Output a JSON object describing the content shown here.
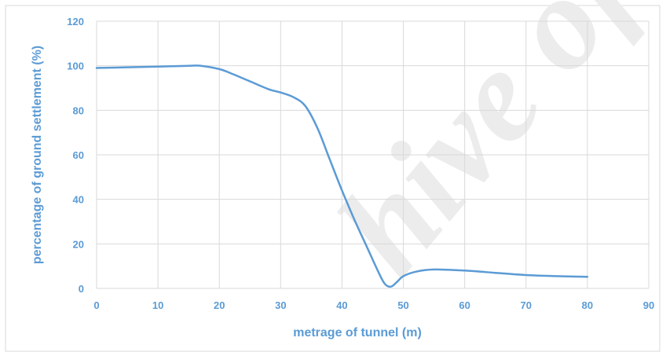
{
  "watermark": {
    "text": "hive of S"
  },
  "chart_data": {
    "type": "line",
    "title": "",
    "xlabel": "metrage of tunnel (m)",
    "ylabel": "percentage of ground settlement (%)",
    "xlim": [
      0,
      90
    ],
    "ylim": [
      0,
      120
    ],
    "x_ticks": [
      0,
      10,
      20,
      30,
      40,
      50,
      60,
      70,
      80,
      90
    ],
    "y_ticks": [
      0,
      20,
      40,
      60,
      80,
      100,
      120
    ],
    "x_tick_labels": [
      "0",
      "10",
      "20",
      "30",
      "40",
      "50",
      "60",
      "70",
      "80",
      "90"
    ],
    "y_tick_labels": [
      "0",
      "20",
      "40",
      "60",
      "80",
      "100",
      "120"
    ],
    "grid": true,
    "legend": "none",
    "colors": {
      "series": "#5b9bd5",
      "axis_text": "#5b9bd5",
      "grid": "#d9d9d9"
    },
    "series": [
      {
        "x": [
          0,
          5,
          10,
          15,
          17,
          20,
          22,
          25,
          28,
          30,
          32,
          34,
          36,
          38,
          40,
          42,
          44,
          46,
          47,
          48,
          49,
          50,
          52,
          55,
          60,
          65,
          70,
          75,
          80
        ],
        "y": [
          99,
          99.3,
          99.6,
          100,
          100,
          98.5,
          96.5,
          93,
          89.5,
          88,
          86,
          82,
          72,
          58,
          44,
          31,
          19,
          7,
          2,
          0.8,
          3,
          5.5,
          7.5,
          8.5,
          8,
          7,
          6,
          5.5,
          5.2
        ]
      }
    ]
  }
}
